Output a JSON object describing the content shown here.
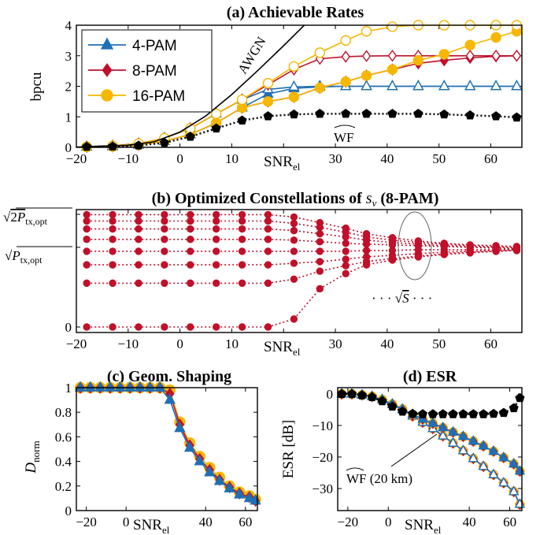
{
  "colors": {
    "pam4": "#1f6fb5",
    "pam8": "#c0102a",
    "pam16": "#f5b700",
    "wf": "#000000",
    "awgn": "#000000",
    "const": "#c0102a"
  },
  "chart_data": [
    {
      "id": "a",
      "type": "line",
      "title": "(a) Achievable Rates",
      "ylabel": "bpcu",
      "xlabel": "SNR_el",
      "xlim": [
        -20,
        66
      ],
      "ylim": [
        0,
        4
      ],
      "xticks": [
        "−20",
        "−10",
        "0",
        "10",
        "20",
        "30",
        "40",
        "50",
        "60"
      ],
      "xtick_values": [
        -20,
        -10,
        0,
        10,
        20,
        30,
        40,
        50,
        60
      ],
      "yticks": [
        "0",
        "1",
        "2",
        "3",
        "4"
      ],
      "ytick_values": [
        0,
        1,
        2,
        3,
        4
      ],
      "legend": {
        "position": "top-left",
        "entries": [
          "4-PAM",
          "8-PAM",
          "16-PAM"
        ]
      },
      "annotations": [
        "AWGN",
        "WF"
      ],
      "series": [
        {
          "name": "4-PAM",
          "marker": "triangle",
          "fill": "solid",
          "x": [
            -18,
            -13,
            -8,
            -3,
            2,
            7,
            12,
            17,
            22,
            27,
            32,
            36,
            41,
            46,
            51,
            56,
            61,
            65
          ],
          "y": [
            0.02,
            0.03,
            0.08,
            0.2,
            0.42,
            0.8,
            1.3,
            1.75,
            1.93,
            1.98,
            2,
            2,
            2,
            2,
            2,
            2,
            2,
            2
          ]
        },
        {
          "name": "4-PAM",
          "marker": "triangle",
          "fill": "hollow",
          "x": [
            -18,
            -13,
            -8,
            -3,
            2,
            7,
            12,
            17,
            22,
            27,
            32,
            36,
            41,
            46,
            51,
            56,
            61,
            65
          ],
          "y": [
            0.02,
            0.05,
            0.12,
            0.3,
            0.62,
            1.1,
            1.56,
            1.9,
            1.98,
            2,
            2,
            2,
            2,
            2,
            2,
            2,
            2,
            2
          ]
        },
        {
          "name": "8-PAM",
          "marker": "diamond",
          "fill": "solid",
          "x": [
            -18,
            -13,
            -8,
            -3,
            2,
            7,
            12,
            17,
            22,
            27,
            32,
            36,
            41,
            46,
            51,
            56,
            61,
            65
          ],
          "y": [
            0.02,
            0.03,
            0.08,
            0.2,
            0.42,
            0.8,
            1.3,
            1.5,
            1.65,
            1.95,
            2.15,
            2.35,
            2.55,
            2.75,
            2.85,
            2.93,
            2.98,
            3
          ]
        },
        {
          "name": "8-PAM",
          "marker": "diamond",
          "fill": "hollow",
          "x": [
            -18,
            -13,
            -8,
            -3,
            2,
            7,
            12,
            17,
            22,
            27,
            32,
            36,
            41,
            46,
            51,
            56,
            61,
            65
          ],
          "y": [
            0.02,
            0.05,
            0.12,
            0.3,
            0.62,
            1.1,
            1.56,
            2.05,
            2.55,
            2.9,
            2.97,
            2.99,
            3,
            3,
            3,
            3,
            3,
            3
          ]
        },
        {
          "name": "16-PAM",
          "marker": "circle",
          "fill": "solid",
          "x": [
            -18,
            -13,
            -8,
            -3,
            2,
            7,
            12,
            17,
            22,
            27,
            32,
            36,
            41,
            46,
            51,
            56,
            61,
            65
          ],
          "y": [
            0.02,
            0.03,
            0.08,
            0.2,
            0.42,
            0.8,
            1.3,
            1.5,
            1.65,
            1.95,
            2.15,
            2.35,
            2.55,
            2.85,
            3.05,
            3.35,
            3.6,
            3.8
          ]
        },
        {
          "name": "16-PAM",
          "marker": "circle",
          "fill": "hollow",
          "x": [
            -18,
            -13,
            -8,
            -3,
            2,
            7,
            12,
            17,
            22,
            27,
            32,
            36,
            41,
            46,
            51,
            56,
            61,
            65
          ],
          "y": [
            0.02,
            0.05,
            0.12,
            0.3,
            0.62,
            1.1,
            1.56,
            2.1,
            2.65,
            3.1,
            3.5,
            3.8,
            3.95,
            4,
            4,
            4,
            4,
            4
          ]
        },
        {
          "name": "WF",
          "marker": "pentagon",
          "fill": "solid",
          "dashed": true,
          "x": [
            -18,
            -13,
            -8,
            -3,
            2,
            7,
            12,
            17,
            22,
            27,
            32,
            36,
            41,
            46,
            51,
            56,
            61,
            65
          ],
          "y": [
            0.02,
            0.03,
            0.06,
            0.15,
            0.35,
            0.62,
            0.88,
            1.02,
            1.08,
            1.1,
            1.1,
            1.1,
            1.1,
            1.1,
            1.08,
            1.05,
            1.02,
            0.98
          ]
        },
        {
          "name": "AWGN",
          "marker": "none",
          "x": [
            -20,
            -10,
            -5,
            0,
            5,
            10,
            15,
            20,
            25
          ],
          "y": [
            0.007,
            0.07,
            0.18,
            0.5,
            1.03,
            1.73,
            2.51,
            3.33,
            4.17
          ]
        }
      ]
    },
    {
      "id": "b",
      "type": "scatter",
      "title": "(b) Optimized Constellations of s_ν (8-PAM)",
      "xlabel": "SNR_el",
      "xlim": [
        -20,
        66
      ],
      "xticks": [
        "−20",
        "−10",
        "0",
        "10",
        "20",
        "30",
        "40",
        "50",
        "60"
      ],
      "xtick_values": [
        -20,
        -10,
        0,
        10,
        20,
        30,
        40,
        50,
        60
      ],
      "yticks": [
        "0",
        "√P_tx,opt",
        "√2P_tx,opt"
      ],
      "ytick_values": [
        0,
        1,
        1.414
      ],
      "annotations": [
        "···√S···"
      ],
      "x": [
        -18,
        -13,
        -8,
        -3,
        2,
        7,
        12,
        17,
        22,
        27,
        32,
        36,
        41,
        46,
        51,
        56,
        61,
        65
      ],
      "levels": [
        [
          0,
          0,
          0,
          0,
          0,
          0,
          0,
          0,
          0.1,
          0.48,
          0.67,
          0.78,
          0.84,
          0.88,
          0.91,
          0.93,
          0.95,
          0.96
        ],
        [
          0.55,
          0.55,
          0.55,
          0.55,
          0.55,
          0.55,
          0.55,
          0.55,
          0.6,
          0.7,
          0.77,
          0.82,
          0.86,
          0.89,
          0.92,
          0.94,
          0.95,
          0.96
        ],
        [
          0.78,
          0.78,
          0.78,
          0.78,
          0.78,
          0.78,
          0.78,
          0.78,
          0.8,
          0.82,
          0.85,
          0.88,
          0.9,
          0.92,
          0.94,
          0.95,
          0.96,
          0.97
        ],
        [
          0.95,
          0.95,
          0.95,
          0.95,
          0.95,
          0.95,
          0.95,
          0.95,
          0.95,
          0.95,
          0.95,
          0.96,
          0.96,
          0.97,
          0.97,
          0.97,
          0.97,
          0.97
        ],
        [
          1.1,
          1.1,
          1.1,
          1.1,
          1.1,
          1.1,
          1.1,
          1.1,
          1.09,
          1.07,
          1.05,
          1.04,
          1.03,
          1.02,
          1.01,
          1.0,
          0.99,
          0.98
        ],
        [
          1.23,
          1.23,
          1.23,
          1.23,
          1.23,
          1.23,
          1.23,
          1.23,
          1.21,
          1.17,
          1.13,
          1.09,
          1.06,
          1.04,
          1.02,
          1.01,
          1.0,
          0.99
        ],
        [
          1.33,
          1.33,
          1.33,
          1.33,
          1.33,
          1.33,
          1.33,
          1.33,
          1.3,
          1.25,
          1.19,
          1.13,
          1.09,
          1.06,
          1.04,
          1.02,
          1.01,
          1.0
        ],
        [
          1.41,
          1.41,
          1.41,
          1.41,
          1.41,
          1.41,
          1.41,
          1.41,
          1.38,
          1.31,
          1.24,
          1.17,
          1.12,
          1.08,
          1.05,
          1.03,
          1.02,
          1.01
        ]
      ]
    },
    {
      "id": "c",
      "type": "line",
      "title": "(c) Geom. Shaping",
      "ylabel": "D_norm",
      "xlabel": "SNR_el",
      "xlim": [
        -25,
        66
      ],
      "ylim": [
        0,
        1
      ],
      "xticks": [
        "−20",
        "0",
        "40",
        "60"
      ],
      "xtick_values": [
        -20,
        0,
        40,
        60
      ],
      "yticks": [
        "0",
        "0.2",
        "0.4",
        "0.6",
        "0.8",
        "1"
      ],
      "ytick_values": [
        0,
        0.2,
        0.4,
        0.6,
        0.8,
        1
      ],
      "series": [
        {
          "name": "16-PAM",
          "marker": "circle",
          "x": [
            -23,
            -18,
            -13,
            -8,
            -3,
            2,
            7,
            12,
            17,
            22,
            27,
            32,
            37,
            42,
            47,
            52,
            57,
            62,
            65
          ],
          "y": [
            1,
            1,
            1,
            1,
            1,
            1,
            1,
            1,
            1,
            0.98,
            0.72,
            0.55,
            0.44,
            0.35,
            0.27,
            0.2,
            0.15,
            0.12,
            0.09
          ]
        },
        {
          "name": "8-PAM",
          "marker": "diamond",
          "x": [
            -23,
            -18,
            -13,
            -8,
            -3,
            2,
            7,
            12,
            17,
            22,
            27,
            32,
            37,
            42,
            47,
            52,
            57,
            62,
            65
          ],
          "y": [
            1,
            1,
            1,
            1,
            1,
            1,
            1,
            1,
            1,
            0.95,
            0.7,
            0.53,
            0.42,
            0.33,
            0.25,
            0.19,
            0.14,
            0.11,
            0.08
          ]
        },
        {
          "name": "4-PAM",
          "marker": "triangle",
          "x": [
            -23,
            -18,
            -13,
            -8,
            -3,
            2,
            7,
            12,
            17,
            22,
            27,
            32,
            37,
            42,
            47,
            52,
            57,
            62,
            65
          ],
          "y": [
            1,
            1,
            1,
            1,
            1,
            1,
            1,
            1,
            1,
            0.9,
            0.67,
            0.51,
            0.4,
            0.31,
            0.24,
            0.18,
            0.13,
            0.1,
            0.08
          ]
        }
      ]
    },
    {
      "id": "d",
      "type": "line",
      "title": "(d) ESR",
      "ylabel": "ESR [dB]",
      "xlabel": "SNR_el",
      "xlim": [
        -25,
        66
      ],
      "ylim": [
        -37,
        2
      ],
      "xticks": [
        "−20",
        "0",
        "40",
        "60"
      ],
      "xtick_values": [
        -20,
        0,
        40,
        60
      ],
      "yticks": [
        "0",
        "−10",
        "−20",
        "−30"
      ],
      "ytick_values": [
        0,
        -10,
        -20,
        -30
      ],
      "annotations": [
        "WF (20 km)"
      ],
      "series": [
        {
          "name": "16-PAM",
          "marker": "circle",
          "fill": "hollow",
          "x": [
            -23,
            -18,
            -13,
            -8,
            -3,
            2,
            7,
            12,
            17,
            22,
            27,
            32,
            37,
            42,
            47,
            52,
            57,
            62,
            65
          ],
          "y": [
            0,
            0,
            -0.3,
            -0.8,
            -1.8,
            -3.3,
            -5,
            -7,
            -9,
            -11,
            -13.3,
            -15.6,
            -18,
            -20.5,
            -23,
            -25.6,
            -28.2,
            -31,
            -35
          ]
        },
        {
          "name": "8-PAM",
          "marker": "diamond",
          "fill": "hollow",
          "x": [
            -23,
            -18,
            -13,
            -8,
            -3,
            2,
            7,
            12,
            17,
            22,
            27,
            32,
            37,
            42,
            47,
            52,
            57,
            62,
            65
          ],
          "y": [
            0,
            0,
            -0.3,
            -0.8,
            -1.8,
            -3.3,
            -5,
            -7,
            -9,
            -11,
            -13.3,
            -15.6,
            -18,
            -20.5,
            -23,
            -25.6,
            -28.2,
            -31,
            -35
          ]
        },
        {
          "name": "4-PAM",
          "marker": "triangle",
          "fill": "hollow",
          "x": [
            -23,
            -18,
            -13,
            -8,
            -3,
            2,
            7,
            12,
            17,
            22,
            27,
            32,
            37,
            42,
            47,
            52,
            57,
            62,
            65
          ],
          "y": [
            0,
            0,
            -0.3,
            -0.8,
            -1.8,
            -3.3,
            -5,
            -7,
            -9,
            -11,
            -13.3,
            -15.6,
            -18,
            -20.5,
            -23,
            -25.6,
            -28.2,
            -31,
            -35
          ]
        },
        {
          "name": "16-PAM",
          "marker": "circle",
          "fill": "solid",
          "x": [
            -23,
            -18,
            -13,
            -8,
            -3,
            2,
            7,
            12,
            17,
            22,
            27,
            32,
            37,
            42,
            47,
            52,
            57,
            62,
            65
          ],
          "y": [
            0,
            0,
            -0.3,
            -0.8,
            -1.8,
            -3.2,
            -4.8,
            -6.5,
            -8,
            -9.3,
            -10.7,
            -12.1,
            -13.5,
            -15,
            -16.5,
            -18.2,
            -20.2,
            -22.2,
            -24.5
          ]
        },
        {
          "name": "8-PAM",
          "marker": "diamond",
          "fill": "solid",
          "x": [
            -23,
            -18,
            -13,
            -8,
            -3,
            2,
            7,
            12,
            17,
            22,
            27,
            32,
            37,
            42,
            47,
            52,
            57,
            62,
            65
          ],
          "y": [
            0,
            0,
            -0.3,
            -0.8,
            -1.8,
            -3.2,
            -4.8,
            -6.5,
            -8,
            -9.3,
            -10.7,
            -12.1,
            -13.5,
            -15,
            -16.5,
            -18.2,
            -20.2,
            -22.2,
            -24.5
          ]
        },
        {
          "name": "4-PAM",
          "marker": "triangle",
          "fill": "solid",
          "x": [
            -23,
            -18,
            -13,
            -8,
            -3,
            2,
            7,
            12,
            17,
            22,
            27,
            32,
            37,
            42,
            47,
            52,
            57,
            62,
            65
          ],
          "y": [
            0,
            0,
            -0.3,
            -0.8,
            -1.8,
            -3.2,
            -4.8,
            -6.5,
            -8,
            -9.3,
            -10.7,
            -12.1,
            -13.5,
            -15,
            -16.5,
            -18.2,
            -20.2,
            -22.2,
            -24.5
          ]
        },
        {
          "name": "WF",
          "marker": "pentagon",
          "fill": "solid",
          "dashed": true,
          "x": [
            -23,
            -18,
            -13,
            -8,
            -3,
            2,
            7,
            12,
            17,
            22,
            27,
            32,
            37,
            42,
            47,
            52,
            57,
            62,
            65
          ],
          "y": [
            0,
            0,
            -0.4,
            -1,
            -2.3,
            -4,
            -5.6,
            -6.3,
            -6.4,
            -6.4,
            -6.4,
            -6.4,
            -6.4,
            -6.4,
            -6.4,
            -6.3,
            -6,
            -4.5,
            -1.3
          ]
        }
      ]
    }
  ]
}
